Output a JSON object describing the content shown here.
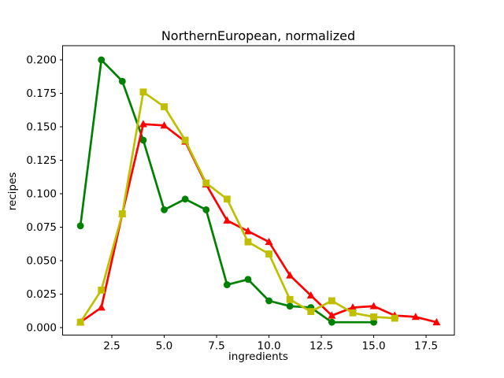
{
  "chart_data": {
    "type": "line",
    "title": "NorthernEuropean, normalized",
    "xlabel": "ingredients",
    "ylabel": "recipes",
    "grid": false,
    "legend": null,
    "background": "#ffffff",
    "xlim": [
      0.15,
      18.85
    ],
    "ylim": [
      -0.0056,
      0.2106
    ],
    "x_ticks": [
      {
        "value": 2.5,
        "label": "2.5"
      },
      {
        "value": 5.0,
        "label": "5.0"
      },
      {
        "value": 7.5,
        "label": "7.5"
      },
      {
        "value": 10.0,
        "label": "10.0"
      },
      {
        "value": 12.5,
        "label": "12.5"
      },
      {
        "value": 15.0,
        "label": "15.0"
      },
      {
        "value": 17.5,
        "label": "17.5"
      }
    ],
    "y_ticks": [
      {
        "value": 0.0,
        "label": "0.000"
      },
      {
        "value": 0.025,
        "label": "0.025"
      },
      {
        "value": 0.05,
        "label": "0.050"
      },
      {
        "value": 0.075,
        "label": "0.075"
      },
      {
        "value": 0.1,
        "label": "0.100"
      },
      {
        "value": 0.125,
        "label": "0.125"
      },
      {
        "value": 0.15,
        "label": "0.150"
      },
      {
        "value": 0.175,
        "label": "0.175"
      },
      {
        "value": 0.2,
        "label": "0.200"
      }
    ],
    "series": [
      {
        "name": "green-circles",
        "color": "#008000",
        "marker": "circle",
        "points": [
          [
            1,
            0.076
          ],
          [
            2,
            0.2
          ],
          [
            3,
            0.184
          ],
          [
            4,
            0.14
          ],
          [
            5,
            0.088
          ],
          [
            6,
            0.096
          ],
          [
            7,
            0.088
          ],
          [
            8,
            0.032
          ],
          [
            9,
            0.036
          ],
          [
            10,
            0.02
          ],
          [
            11,
            0.016
          ],
          [
            12,
            0.015
          ],
          [
            13,
            0.004
          ],
          [
            15,
            0.004
          ]
        ]
      },
      {
        "name": "red-triangles",
        "color": "#ff0000",
        "marker": "triangle-up",
        "points": [
          [
            1,
            0.004
          ],
          [
            2,
            0.015
          ],
          [
            3,
            0.085
          ],
          [
            4,
            0.152
          ],
          [
            5,
            0.151
          ],
          [
            6,
            0.139
          ],
          [
            7,
            0.107
          ],
          [
            8,
            0.08
          ],
          [
            9,
            0.072
          ],
          [
            10,
            0.064
          ],
          [
            11,
            0.039
          ],
          [
            12,
            0.024
          ],
          [
            13,
            0.009
          ],
          [
            14,
            0.015
          ],
          [
            15,
            0.016
          ],
          [
            16,
            0.009
          ],
          [
            17,
            0.008
          ],
          [
            18,
            0.004
          ]
        ]
      },
      {
        "name": "yellow-squares",
        "color": "#bfbf00",
        "marker": "square",
        "points": [
          [
            1,
            0.004
          ],
          [
            2,
            0.028
          ],
          [
            3,
            0.085
          ],
          [
            4,
            0.176
          ],
          [
            5,
            0.165
          ],
          [
            6,
            0.14
          ],
          [
            7,
            0.108
          ],
          [
            8,
            0.096
          ],
          [
            9,
            0.064
          ],
          [
            10,
            0.055
          ],
          [
            11,
            0.021
          ],
          [
            12,
            0.012
          ],
          [
            13,
            0.02
          ],
          [
            14,
            0.011
          ],
          [
            15,
            0.008
          ],
          [
            16,
            0.007
          ]
        ]
      }
    ]
  }
}
